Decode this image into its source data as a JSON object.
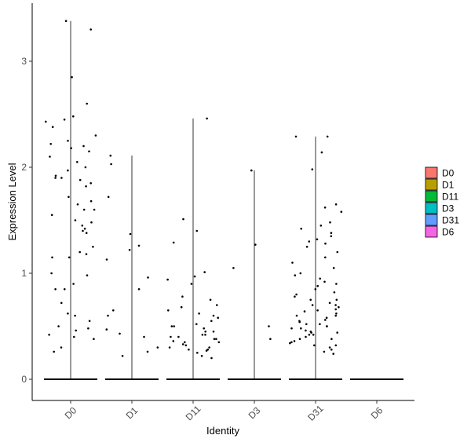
{
  "chart_data": {
    "type": "violin",
    "title": "",
    "xlabel": "Identity",
    "ylabel": "Expression Level",
    "categories": [
      "D0",
      "D1",
      "D11",
      "D3",
      "D31",
      "D6"
    ],
    "ylim": [
      -0.2,
      3.55
    ],
    "yticks": [
      0,
      1,
      2,
      3
    ],
    "grid": false,
    "legend_position": "right",
    "legend": [
      {
        "label": "D0",
        "color": "#F8766D"
      },
      {
        "label": "D1",
        "color": "#B79F00"
      },
      {
        "label": "D11",
        "color": "#00BA38"
      },
      {
        "label": "D3",
        "color": "#00BFC4"
      },
      {
        "label": "D31",
        "color": "#619CFF"
      },
      {
        "label": "D6",
        "color": "#F564E3"
      }
    ],
    "series": [
      {
        "category": "D0",
        "max": 3.38,
        "fill_color": "#F8766D",
        "nonzero_values": [
          3.38,
          3.3,
          2.85,
          2.6,
          2.48,
          2.45,
          2.43,
          2.38,
          2.3,
          2.25,
          2.22,
          2.2,
          2.18,
          2.15,
          2.1,
          2.05,
          2.0,
          1.97,
          1.92,
          1.9,
          1.9,
          1.88,
          1.85,
          1.82,
          1.72,
          1.68,
          1.65,
          1.6,
          1.6,
          1.55,
          1.5,
          1.48,
          1.45,
          1.42,
          1.4,
          1.38,
          1.25,
          1.2,
          1.18,
          1.15,
          1.15,
          1.0,
          0.98,
          0.9,
          0.85,
          0.85,
          0.72,
          0.62,
          0.6,
          0.55,
          0.5,
          0.48,
          0.46,
          0.42,
          0.4,
          0.38,
          0.3,
          0.26
        ]
      },
      {
        "category": "D1",
        "max": 2.11,
        "fill_color": "#B79F00",
        "nonzero_values": [
          2.11,
          2.03,
          1.72,
          1.37,
          1.26,
          1.22,
          1.13,
          0.96,
          0.85,
          0.65,
          0.6,
          0.47,
          0.43,
          0.4,
          0.3,
          0.26,
          0.22
        ]
      },
      {
        "category": "D11",
        "max": 2.46,
        "fill_color": "#00BA38",
        "nonzero_values": [
          2.46,
          1.51,
          1.4,
          1.29,
          1.01,
          0.97,
          0.94,
          0.9,
          0.78,
          0.75,
          0.7,
          0.68,
          0.65,
          0.62,
          0.6,
          0.58,
          0.55,
          0.52,
          0.5,
          0.5,
          0.48,
          0.45,
          0.45,
          0.42,
          0.42,
          0.4,
          0.4,
          0.38,
          0.38,
          0.36,
          0.35,
          0.35,
          0.33,
          0.32,
          0.3,
          0.3,
          0.28,
          0.28,
          0.27,
          0.25,
          0.22,
          0.2
        ]
      },
      {
        "category": "D3",
        "max": 1.97,
        "fill_color": "#00BFC4",
        "nonzero_values": [
          1.97,
          1.27,
          1.05,
          0.5,
          0.38
        ]
      },
      {
        "category": "D31",
        "max": 2.29,
        "fill_color": "#619CFF",
        "nonzero_values": [
          2.29,
          2.29,
          2.14,
          1.98,
          1.65,
          1.62,
          1.58,
          1.48,
          1.45,
          1.42,
          1.38,
          1.35,
          1.32,
          1.3,
          1.28,
          1.25,
          1.2,
          1.15,
          1.1,
          1.05,
          1.0,
          0.98,
          0.95,
          0.92,
          0.9,
          0.88,
          0.85,
          0.82,
          0.8,
          0.78,
          0.75,
          0.72,
          0.7,
          0.68,
          0.66,
          0.64,
          0.62,
          0.6,
          0.58,
          0.56,
          0.54,
          0.52,
          0.5,
          0.48,
          0.46,
          0.44,
          0.42,
          0.4,
          0.38,
          0.36,
          0.34,
          0.32,
          0.3,
          0.28,
          0.26,
          0.24,
          0.6,
          0.55,
          0.5,
          0.45,
          0.42,
          0.38,
          0.35,
          0.32,
          0.65,
          0.7,
          0.75,
          0.52,
          0.48,
          0.44
        ]
      },
      {
        "category": "D6",
        "max": 0.0,
        "fill_color": "#F564E3",
        "nonzero_values": []
      }
    ]
  }
}
